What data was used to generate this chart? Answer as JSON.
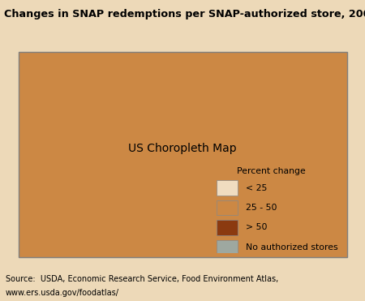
{
  "title": "Changes in SNAP redemptions per SNAP-authorized store, 2008-09",
  "source_line1": "Source:  USDA, Economic Research Service, Food Environment Atlas,",
  "source_line2": "www.ers.usda.gov/foodatlas/",
  "legend_title": "Percent change",
  "legend_items": [
    {
      "label": "< 25",
      "color": "#F0DCC0"
    },
    {
      "label": "25 - 50",
      "color": "#CC8844"
    },
    {
      "label": "> 50",
      "color": "#8B3A10"
    },
    {
      "label": "No authorized stores",
      "color": "#9EA8A0"
    }
  ],
  "color_lt25": "#F0DCC0",
  "color_25_50": "#CC8844",
  "color_gt50": "#8B3A10",
  "color_nostore": "#9EA8A0",
  "title_bg_color": "#F0C898",
  "fig_bg": "#EDD9B8",
  "map_edge_color": "#FFFFFF",
  "title_fontsize": 9.2,
  "source_fontsize": 7.0,
  "legend_fontsize": 7.8
}
